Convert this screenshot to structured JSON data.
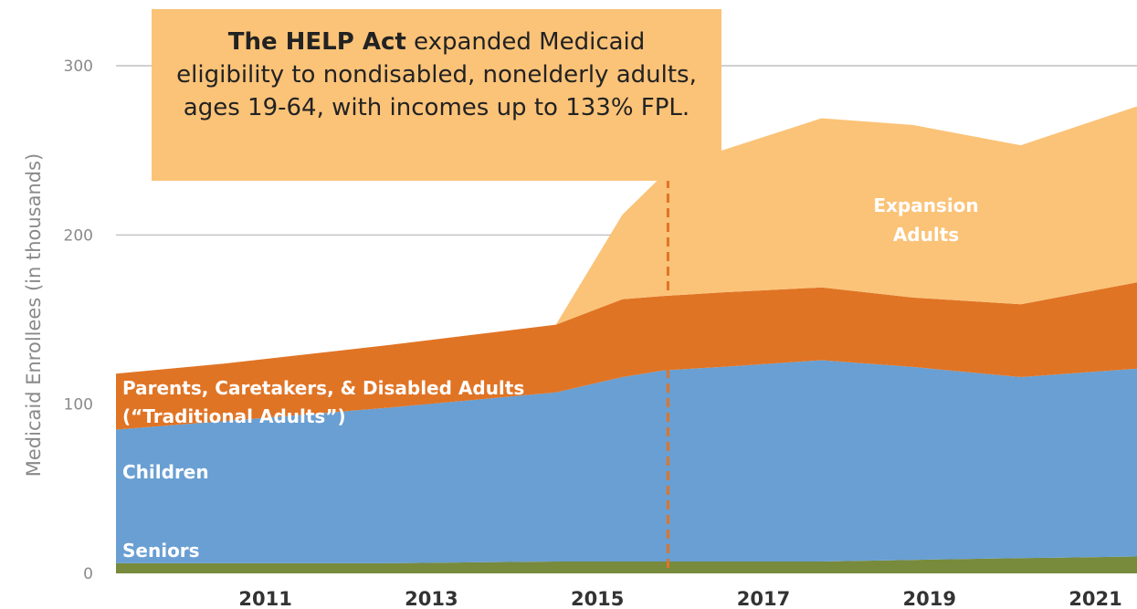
{
  "chart_data": {
    "type": "area",
    "stacked": true,
    "ylabel": "Medicaid Enrollees (in thousands)",
    "xlabel": "",
    "ylim": [
      0,
      300
    ],
    "yticks": [
      0,
      100,
      200,
      300
    ],
    "xlim": [
      2009.2,
      2021.5
    ],
    "xticks": [
      2011,
      2013,
      2015,
      2017,
      2019,
      2021
    ],
    "grid": true,
    "x": [
      2009.2,
      2010.5,
      2012.5,
      2014.5,
      2015.3,
      2015.8,
      2016.5,
      2017.7,
      2018.8,
      2020.1,
      2021.5
    ],
    "series": [
      {
        "name": "Seniors",
        "color": "#788a3c",
        "values": [
          6,
          6,
          6,
          7,
          7,
          7,
          7,
          7,
          8,
          9,
          10
        ]
      },
      {
        "name": "Children",
        "color": "#699fd2",
        "values": [
          79,
          84,
          92,
          100,
          109,
          113,
          115,
          119,
          114,
          107,
          111
        ]
      },
      {
        "name": "Parents, Caretakers, & Disabled Adults (“Traditional Adults”)",
        "color": "#e07425",
        "values": [
          33,
          34,
          37,
          40,
          46,
          44,
          44,
          43,
          41,
          43,
          51
        ]
      },
      {
        "name": "Expansion Adults",
        "color": "#fbc378",
        "values": [
          0,
          0,
          0,
          0,
          50,
          72,
          84,
          100,
          102,
          94,
          104
        ]
      }
    ],
    "event_line_x": 2015.85,
    "event_line_color": "#e07425",
    "annotation": {
      "bold": "The HELP Act",
      "text": " expanded Medicaid eligibility to nondisabled, nonelderly adults, ages 19-64, with incomes up to 133% FPL."
    },
    "area_labels": {
      "seniors": "Seniors",
      "children": "Children",
      "traditional_line1": "Parents, Caretakers, & Disabled Adults",
      "traditional_line2": "(“Traditional Adults”)",
      "expansion_line1": "Expansion",
      "expansion_line2": "Adults"
    }
  }
}
